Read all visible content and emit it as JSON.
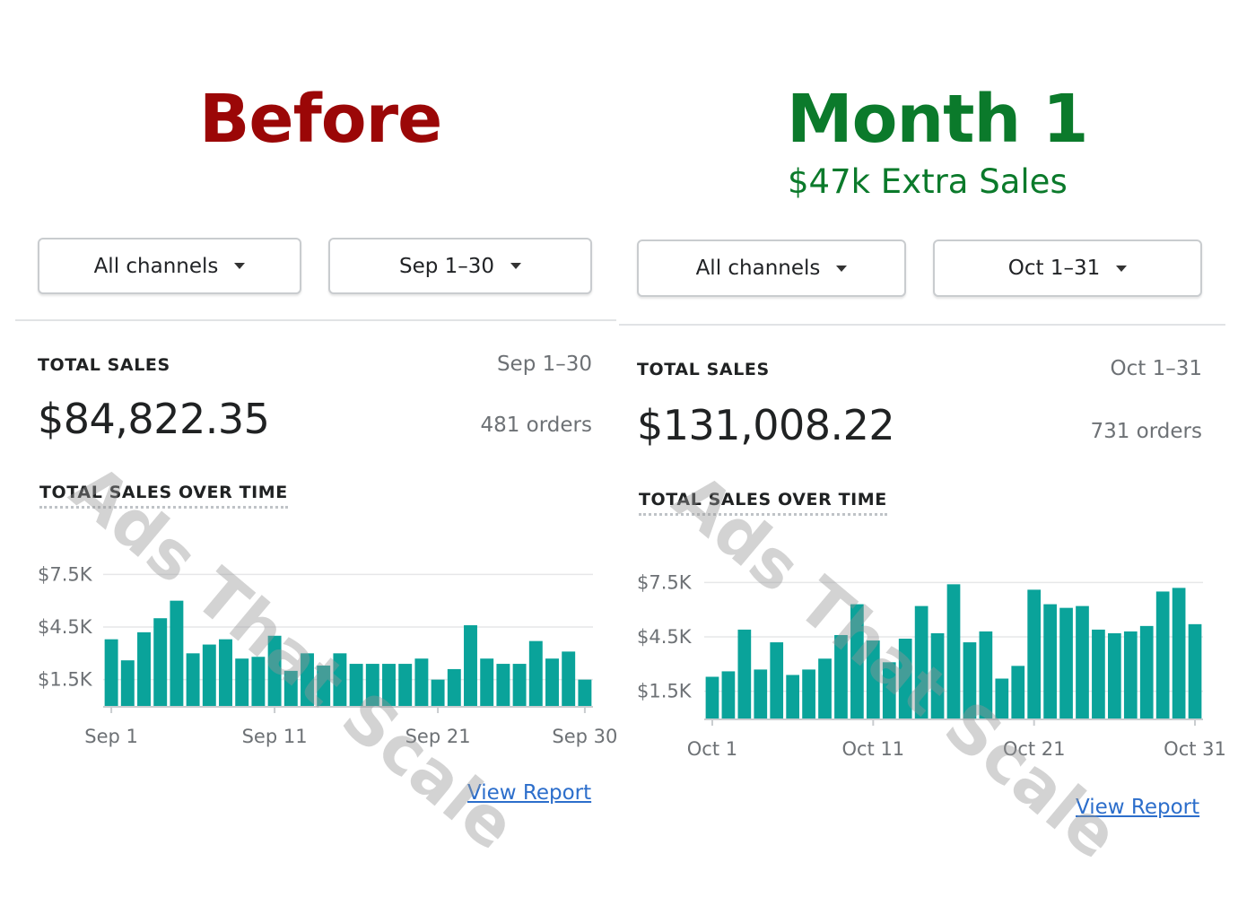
{
  "colors": {
    "before": "#9b0707",
    "month1": "#0b7a2b",
    "bar": "#0aa39a",
    "link": "#2c6ecb"
  },
  "header": {
    "before_title": "Before",
    "month_title": "Month 1",
    "month_subtitle": "$47k Extra Sales"
  },
  "watermark": "Ads That Scale",
  "panels": [
    {
      "channel_label": "All channels",
      "date_label": "Sep 1–30",
      "total_sales_label": "TOTAL SALES",
      "range": "Sep 1–30",
      "total_value": "$84,822.35",
      "orders": "481 orders",
      "over_time_label": "TOTAL SALES OVER TIME",
      "view_report": "View Report"
    },
    {
      "channel_label": "All channels",
      "date_label": "Oct 1–31",
      "total_sales_label": "TOTAL SALES",
      "range": "Oct 1–31",
      "total_value": "$131,008.22",
      "orders": "731 orders",
      "over_time_label": "TOTAL SALES OVER TIME",
      "view_report": "View Report"
    }
  ],
  "chart_data": [
    {
      "type": "bar",
      "title": "TOTAL SALES OVER TIME",
      "x_tick_labels": [
        "Sep 1",
        "Sep 11",
        "Sep 21",
        "Sep 30"
      ],
      "y_tick_labels": [
        "$7.5K",
        "$4.5K",
        "$1.5K"
      ],
      "ylim": [
        0,
        9000
      ],
      "grid": true,
      "days": [
        "Sep 1",
        "Sep 2",
        "Sep 3",
        "Sep 4",
        "Sep 5",
        "Sep 6",
        "Sep 7",
        "Sep 8",
        "Sep 9",
        "Sep 10",
        "Sep 11",
        "Sep 12",
        "Sep 13",
        "Sep 14",
        "Sep 15",
        "Sep 16",
        "Sep 17",
        "Sep 18",
        "Sep 19",
        "Sep 20",
        "Sep 21",
        "Sep 22",
        "Sep 23",
        "Sep 24",
        "Sep 25",
        "Sep 26",
        "Sep 27",
        "Sep 28",
        "Sep 29",
        "Sep 30"
      ],
      "values": [
        3800,
        2600,
        4200,
        5000,
        6000,
        3000,
        3500,
        3800,
        2700,
        2800,
        4000,
        2000,
        3000,
        2300,
        3000,
        2400,
        2400,
        2400,
        2400,
        2700,
        1500,
        2100,
        4600,
        2700,
        2400,
        2400,
        3700,
        2700,
        3100,
        1500
      ]
    },
    {
      "type": "bar",
      "title": "TOTAL SALES OVER TIME",
      "x_tick_labels": [
        "Oct 1",
        "Oct 11",
        "Oct 21",
        "Oct 31"
      ],
      "y_tick_labels": [
        "$7.5K",
        "$4.5K",
        "$1.5K"
      ],
      "ylim": [
        0,
        9000
      ],
      "grid": true,
      "days": [
        "Oct 1",
        "Oct 2",
        "Oct 3",
        "Oct 4",
        "Oct 5",
        "Oct 6",
        "Oct 7",
        "Oct 8",
        "Oct 9",
        "Oct 10",
        "Oct 11",
        "Oct 12",
        "Oct 13",
        "Oct 14",
        "Oct 15",
        "Oct 16",
        "Oct 17",
        "Oct 18",
        "Oct 19",
        "Oct 20",
        "Oct 21",
        "Oct 22",
        "Oct 23",
        "Oct 24",
        "Oct 25",
        "Oct 26",
        "Oct 27",
        "Oct 28",
        "Oct 29",
        "Oct 30",
        "Oct 31"
      ],
      "values": [
        2300,
        2600,
        4900,
        2700,
        4200,
        2400,
        2700,
        3300,
        4600,
        6300,
        4300,
        3100,
        4400,
        6200,
        4700,
        7400,
        4200,
        4800,
        2200,
        2900,
        7100,
        6300,
        6100,
        6200,
        4900,
        4700,
        4800,
        5100,
        7000,
        7200,
        5200
      ]
    }
  ]
}
